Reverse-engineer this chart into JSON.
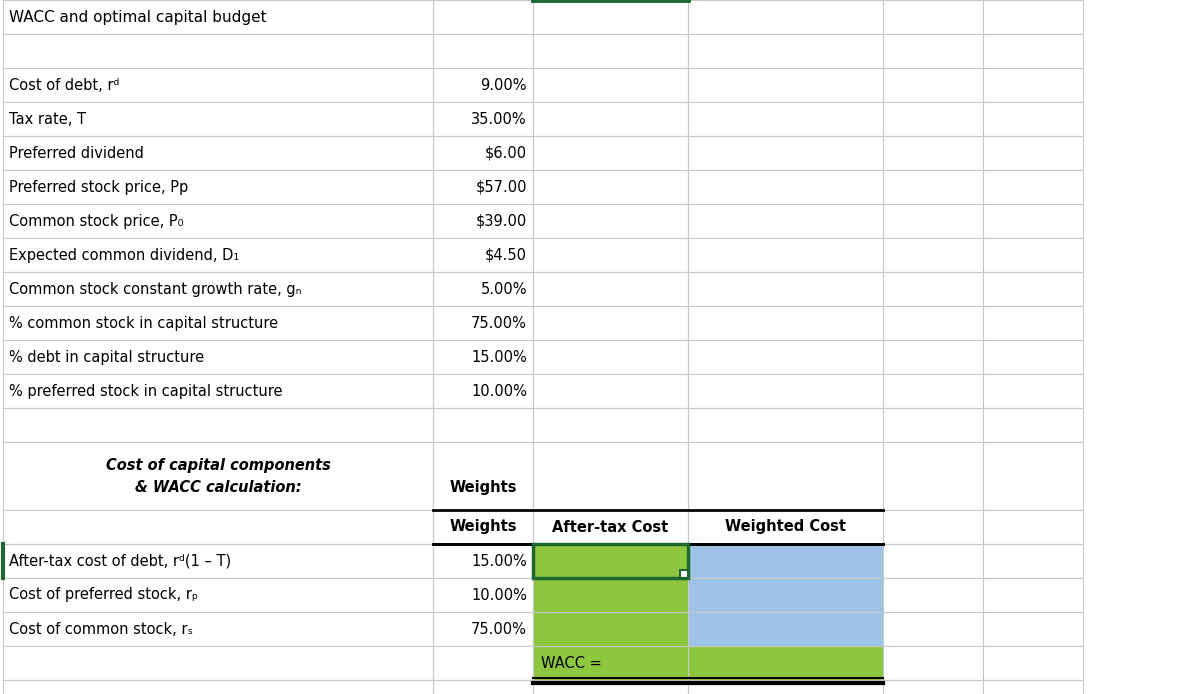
{
  "title": "WACC and optimal capital budget",
  "input_rows": [
    {
      "label": "Cost of debt, r_d",
      "value": "9.00%"
    },
    {
      "label": "Tax rate, T",
      "value": "35.00%"
    },
    {
      "label": "Preferred dividend",
      "value": "$6.00"
    },
    {
      "label": "Preferred stock price, Pp",
      "value": "$57.00"
    },
    {
      "label": "Common stock price, P_0",
      "value": "$39.00"
    },
    {
      "label": "Expected common dividend, D_1",
      "value": "$4.50"
    },
    {
      "label": "Common stock constant growth rate, g_n",
      "value": "5.00%"
    },
    {
      "label": "% common stock in capital structure",
      "value": "75.00%"
    },
    {
      "label": "% debt in capital structure",
      "value": "15.00%"
    },
    {
      "label": "% preferred stock in capital structure",
      "value": "10.00%"
    }
  ],
  "section_header_line1": "Cost of capital components",
  "section_header_line2": "& WACC calculation:",
  "col_headers": [
    "Weights",
    "After-tax Cost",
    "Weighted Cost"
  ],
  "calc_rows": [
    {
      "label": "After-tax cost of debt, r_d(1 – T)",
      "weight": "15.00%"
    },
    {
      "label": "Cost of preferred stock, r_p",
      "weight": "10.00%"
    },
    {
      "label": "Cost of common stock, r_s",
      "weight": "75.00%"
    }
  ],
  "wacc_label": "WACC =",
  "green_color": "#8dc63f",
  "blue_color": "#9dc3e6",
  "dark_green_border": "#1f6832",
  "grid_color": "#c8c8c8",
  "bg_color": "#ffffff",
  "fig_width": 12.0,
  "fig_height": 6.94,
  "dpi": 100
}
